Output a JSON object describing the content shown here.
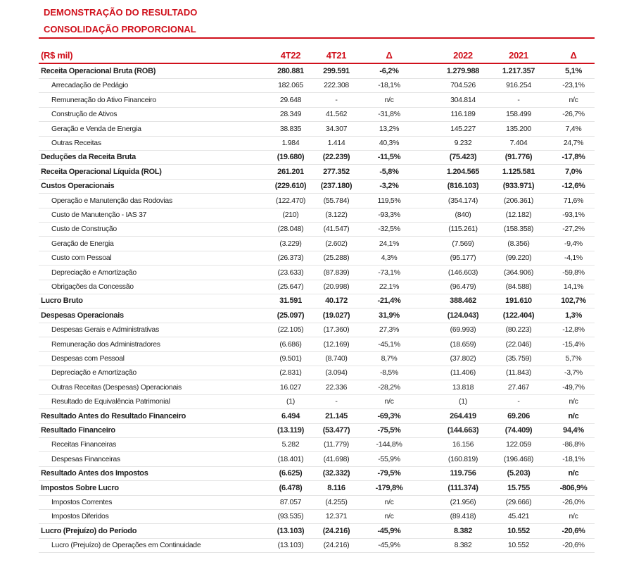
{
  "header": {
    "title": [
      "DEMONSTRAÇÃO DO RESULTADO",
      "CONSOLIDAÇÃO PROPORCIONAL"
    ]
  },
  "table": {
    "columns": [
      "(R$ mil)",
      "4T22",
      "4T21",
      "Δ",
      "2022",
      "2021",
      "Δ"
    ],
    "groups": [
      {
        "cells": [
          "Receita Operacional Bruta (ROB)",
          "280.881",
          "299.591",
          "-6,2%",
          "1.279.988",
          "1.217.357",
          "5,1%"
        ],
        "items": [
          [
            "Arrecadação de Pedágio",
            "182.065",
            "222.308",
            "-18,1%",
            "704.526",
            "916.254",
            "-23,1%"
          ],
          [
            "Remuneração do Ativo Financeiro",
            "29.648",
            "-",
            "n/c",
            "304.814",
            "-",
            "n/c"
          ],
          [
            "Construção de Ativos",
            "28.349",
            "41.562",
            "-31,8%",
            "116.189",
            "158.499",
            "-26,7%"
          ],
          [
            "Geração e Venda de Energia",
            "38.835",
            "34.307",
            "13,2%",
            "145.227",
            "135.200",
            "7,4%"
          ],
          [
            "Outras Receitas",
            "1.984",
            "1.414",
            "40,3%",
            "9.232",
            "7.404",
            "24,7%"
          ]
        ]
      },
      {
        "cells": [
          "Deduções da Receita Bruta",
          "(19.680)",
          "(22.239)",
          "-11,5%",
          "(75.423)",
          "(91.776)",
          "-17,8%"
        ],
        "items": []
      },
      {
        "cells": [
          "Receita Operacional Líquida (ROL)",
          "261.201",
          "277.352",
          "-5,8%",
          "1.204.565",
          "1.125.581",
          "7,0%"
        ],
        "items": []
      },
      {
        "cells": [
          "Custos Operacionais",
          "(229.610)",
          "(237.180)",
          "-3,2%",
          "(816.103)",
          "(933.971)",
          "-12,6%"
        ],
        "items": [
          [
            "Operação e Manutenção das Rodovias",
            "(122.470)",
            "(55.784)",
            "119,5%",
            "(354.174)",
            "(206.361)",
            "71,6%"
          ],
          [
            "Custo de Manutenção - IAS 37",
            "(210)",
            "(3.122)",
            "-93,3%",
            "(840)",
            "(12.182)",
            "-93,1%"
          ],
          [
            "Custo de Construção",
            "(28.048)",
            "(41.547)",
            "-32,5%",
            "(115.261)",
            "(158.358)",
            "-27,2%"
          ],
          [
            "Geração de Energia",
            "(3.229)",
            "(2.602)",
            "24,1%",
            "(7.569)",
            "(8.356)",
            "-9,4%"
          ],
          [
            "Custo com Pessoal",
            "(26.373)",
            "(25.288)",
            "4,3%",
            "(95.177)",
            "(99.220)",
            "-4,1%"
          ],
          [
            "Depreciação e Amortização",
            "(23.633)",
            "(87.839)",
            "-73,1%",
            "(146.603)",
            "(364.906)",
            "-59,8%"
          ],
          [
            "Obrigações da Concessão",
            "(25.647)",
            "(20.998)",
            "22,1%",
            "(96.479)",
            "(84.588)",
            "14,1%"
          ]
        ]
      },
      {
        "cells": [
          "Lucro Bruto",
          "31.591",
          "40.172",
          "-21,4%",
          "388.462",
          "191.610",
          "102,7%"
        ],
        "items": []
      },
      {
        "cells": [
          "Despesas Operacionais",
          "(25.097)",
          "(19.027)",
          "31,9%",
          "(124.043)",
          "(122.404)",
          "1,3%"
        ],
        "items": [
          [
            "Despesas Gerais e Administrativas",
            "(22.105)",
            "(17.360)",
            "27,3%",
            "(69.993)",
            "(80.223)",
            "-12,8%"
          ],
          [
            "Remuneração dos Administradores",
            "(6.686)",
            "(12.169)",
            "-45,1%",
            "(18.659)",
            "(22.046)",
            "-15,4%"
          ],
          [
            "Despesas com Pessoal",
            "(9.501)",
            "(8.740)",
            "8,7%",
            "(37.802)",
            "(35.759)",
            "5,7%"
          ],
          [
            "Depreciação e Amortização",
            "(2.831)",
            "(3.094)",
            "-8,5%",
            "(11.406)",
            "(11.843)",
            "-3,7%"
          ],
          [
            "Outras Receitas (Despesas) Operacionais",
            "16.027",
            "22.336",
            "-28,2%",
            "13.818",
            "27.467",
            "-49,7%"
          ],
          [
            "Resultado de Equivalência Patrimonial",
            "(1)",
            "-",
            "n/c",
            "(1)",
            "-",
            "n/c"
          ]
        ]
      },
      {
        "cells": [
          "Resultado Antes do Resultado Financeiro",
          "6.494",
          "21.145",
          "-69,3%",
          "264.419",
          "69.206",
          "n/c"
        ],
        "items": []
      },
      {
        "cells": [
          "Resultado Financeiro",
          "(13.119)",
          "(53.477)",
          "-75,5%",
          "(144.663)",
          "(74.409)",
          "94,4%"
        ],
        "items": [
          [
            "Receitas Financeiras",
            "5.282",
            "(11.779)",
            "-144,8%",
            "16.156",
            "122.059",
            "-86,8%"
          ],
          [
            "Despesas Financeiras",
            "(18.401)",
            "(41.698)",
            "-55,9%",
            "(160.819)",
            "(196.468)",
            "-18,1%"
          ]
        ]
      },
      {
        "cells": [
          "Resultado Antes dos Impostos",
          "(6.625)",
          "(32.332)",
          "-79,5%",
          "119.756",
          "(5.203)",
          "n/c"
        ],
        "items": []
      },
      {
        "cells": [
          "Impostos Sobre Lucro",
          "(6.478)",
          "8.116",
          "-179,8%",
          "(111.374)",
          "15.755",
          "-806,9%"
        ],
        "items": [
          [
            "Impostos Correntes",
            "87.057",
            "(4.255)",
            "n/c",
            "(21.956)",
            "(29.666)",
            "-26,0%"
          ],
          [
            "Impostos Diferidos",
            "(93.535)",
            "12.371",
            "n/c",
            "(89.418)",
            "45.421",
            "n/c"
          ]
        ]
      },
      {
        "cells": [
          "Lucro (Prejuízo) do Período",
          "(13.103)",
          "(24.216)",
          "-45,9%",
          "8.382",
          "10.552",
          "-20,6%"
        ],
        "items": [
          [
            "Lucro (Prejuízo) de Operações em Continuidade",
            "(13.103)",
            "(24.216)",
            "-45,9%",
            "8.382",
            "10.552",
            "-20,6%"
          ]
        ]
      }
    ]
  }
}
